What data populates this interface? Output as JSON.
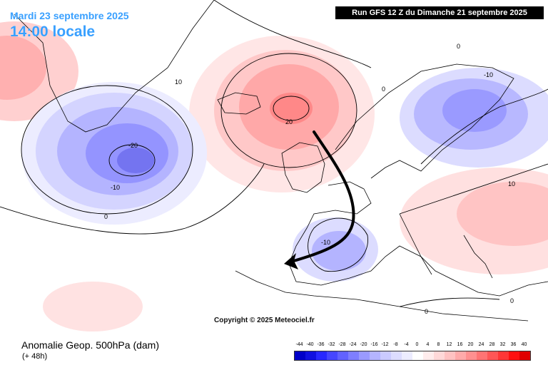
{
  "header": {
    "valid_date": "Mardi 23 septembre 2025",
    "valid_time": "14:00 locale",
    "run": "Run GFS 12 Z du Dimanche 21 septembre 2025"
  },
  "map": {
    "contour_labels": [
      "10",
      "-20",
      "-10",
      "0",
      "20",
      "0",
      "-10",
      "10",
      "-10",
      "0",
      "0",
      "0"
    ],
    "copyright": "Copyright © 2025 Meteociel.fr",
    "colors": {
      "positive": "#f08080",
      "negative": "#7070f0",
      "coast": "#000000",
      "arrow": "#000000"
    }
  },
  "footer": {
    "product": "Anomalie Geop. 500hPa (dam)",
    "lead": "(+ 48h)"
  },
  "legend": {
    "ticks": [
      "-44",
      "-40",
      "-36",
      "-32",
      "-28",
      "-24",
      "-20",
      "-16",
      "-12",
      "-8",
      "-4",
      "0",
      "4",
      "8",
      "12",
      "16",
      "20",
      "24",
      "28",
      "32",
      "36",
      "40"
    ],
    "colors": [
      "#0000c8",
      "#1010e0",
      "#2828ff",
      "#4646ff",
      "#6262ff",
      "#7e7eff",
      "#9a9aff",
      "#b4b4ff",
      "#cacaff",
      "#dcdcff",
      "#ececff",
      "#ffffff",
      "#ffecec",
      "#ffd8d8",
      "#ffc2c2",
      "#ffaaaa",
      "#ff9090",
      "#ff7474",
      "#ff5656",
      "#ff3636",
      "#ff1010",
      "#e00000"
    ]
  }
}
